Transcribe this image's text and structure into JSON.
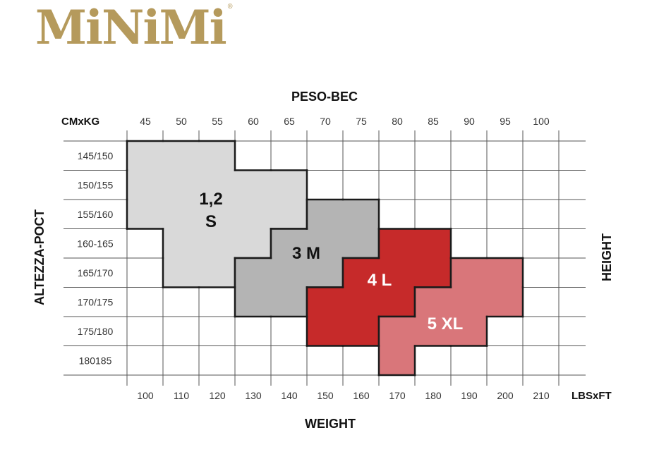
{
  "brand": {
    "logo_text": "MiNiMi",
    "registered": "®",
    "color": "#b59a5c"
  },
  "chart_data": {
    "type": "table",
    "title_top": "PESO-BEC",
    "title_bottom": "WEIGHT",
    "ylabel_left": "ALTEZZA-РОСТ",
    "ylabel_right": "HEIGHT",
    "top_axis_unit": "CMxKG",
    "bottom_axis_unit": "LBSxFT",
    "kg_ticks": [
      "45",
      "50",
      "55",
      "60",
      "65",
      "70",
      "75",
      "80",
      "85",
      "90",
      "95",
      "100"
    ],
    "lbs_ticks": [
      "100",
      "110",
      "120",
      "130",
      "140",
      "150",
      "160",
      "170",
      "180",
      "190",
      "200",
      "210"
    ],
    "height_rows": [
      "145/150",
      "150/155",
      "155/160",
      "160-165",
      "165/170",
      "170/175",
      "175/180",
      "180185"
    ],
    "grid": true,
    "sizes": [
      {
        "label_lines": [
          "1,2",
          "S"
        ],
        "color": "#d9d9d9",
        "text_color": "#111111",
        "kg_ranges_by_height": [
          {
            "height": "145/150",
            "from_kg": 45,
            "to_kg": 60
          },
          {
            "height": "150/155",
            "from_kg": 45,
            "to_kg": 70
          },
          {
            "height": "155/160",
            "from_kg": 45,
            "to_kg": 70
          },
          {
            "height": "160-165",
            "from_kg": 50,
            "to_kg": 65
          },
          {
            "height": "165/170",
            "from_kg": 50,
            "to_kg": 60
          }
        ]
      },
      {
        "label_lines": [
          "3 M"
        ],
        "color": "#b4b4b4",
        "text_color": "#111111",
        "kg_ranges_by_height": [
          {
            "height": "155/160",
            "from_kg": 70,
            "to_kg": 80
          },
          {
            "height": "160-165",
            "from_kg": 65,
            "to_kg": 80
          },
          {
            "height": "165/170",
            "from_kg": 60,
            "to_kg": 75
          },
          {
            "height": "170/175",
            "from_kg": 60,
            "to_kg": 70
          }
        ]
      },
      {
        "label_lines": [
          "4 L"
        ],
        "color": "#c62a2a",
        "text_color": "#ffffff",
        "kg_ranges_by_height": [
          {
            "height": "160-165",
            "from_kg": 80,
            "to_kg": 90
          },
          {
            "height": "165/170",
            "from_kg": 75,
            "to_kg": 90
          },
          {
            "height": "170/175",
            "from_kg": 70,
            "to_kg": 85
          },
          {
            "height": "175/180",
            "from_kg": 70,
            "to_kg": 80
          }
        ]
      },
      {
        "label_lines": [
          "5 XL"
        ],
        "color": "#d9767a",
        "text_color": "#ffffff",
        "kg_ranges_by_height": [
          {
            "height": "165/170",
            "from_kg": 90,
            "to_kg": 100
          },
          {
            "height": "170/175",
            "from_kg": 85,
            "to_kg": 100
          },
          {
            "height": "175/180",
            "from_kg": 80,
            "to_kg": 95
          },
          {
            "height": "180185",
            "from_kg": 80,
            "to_kg": 85
          }
        ]
      }
    ]
  }
}
